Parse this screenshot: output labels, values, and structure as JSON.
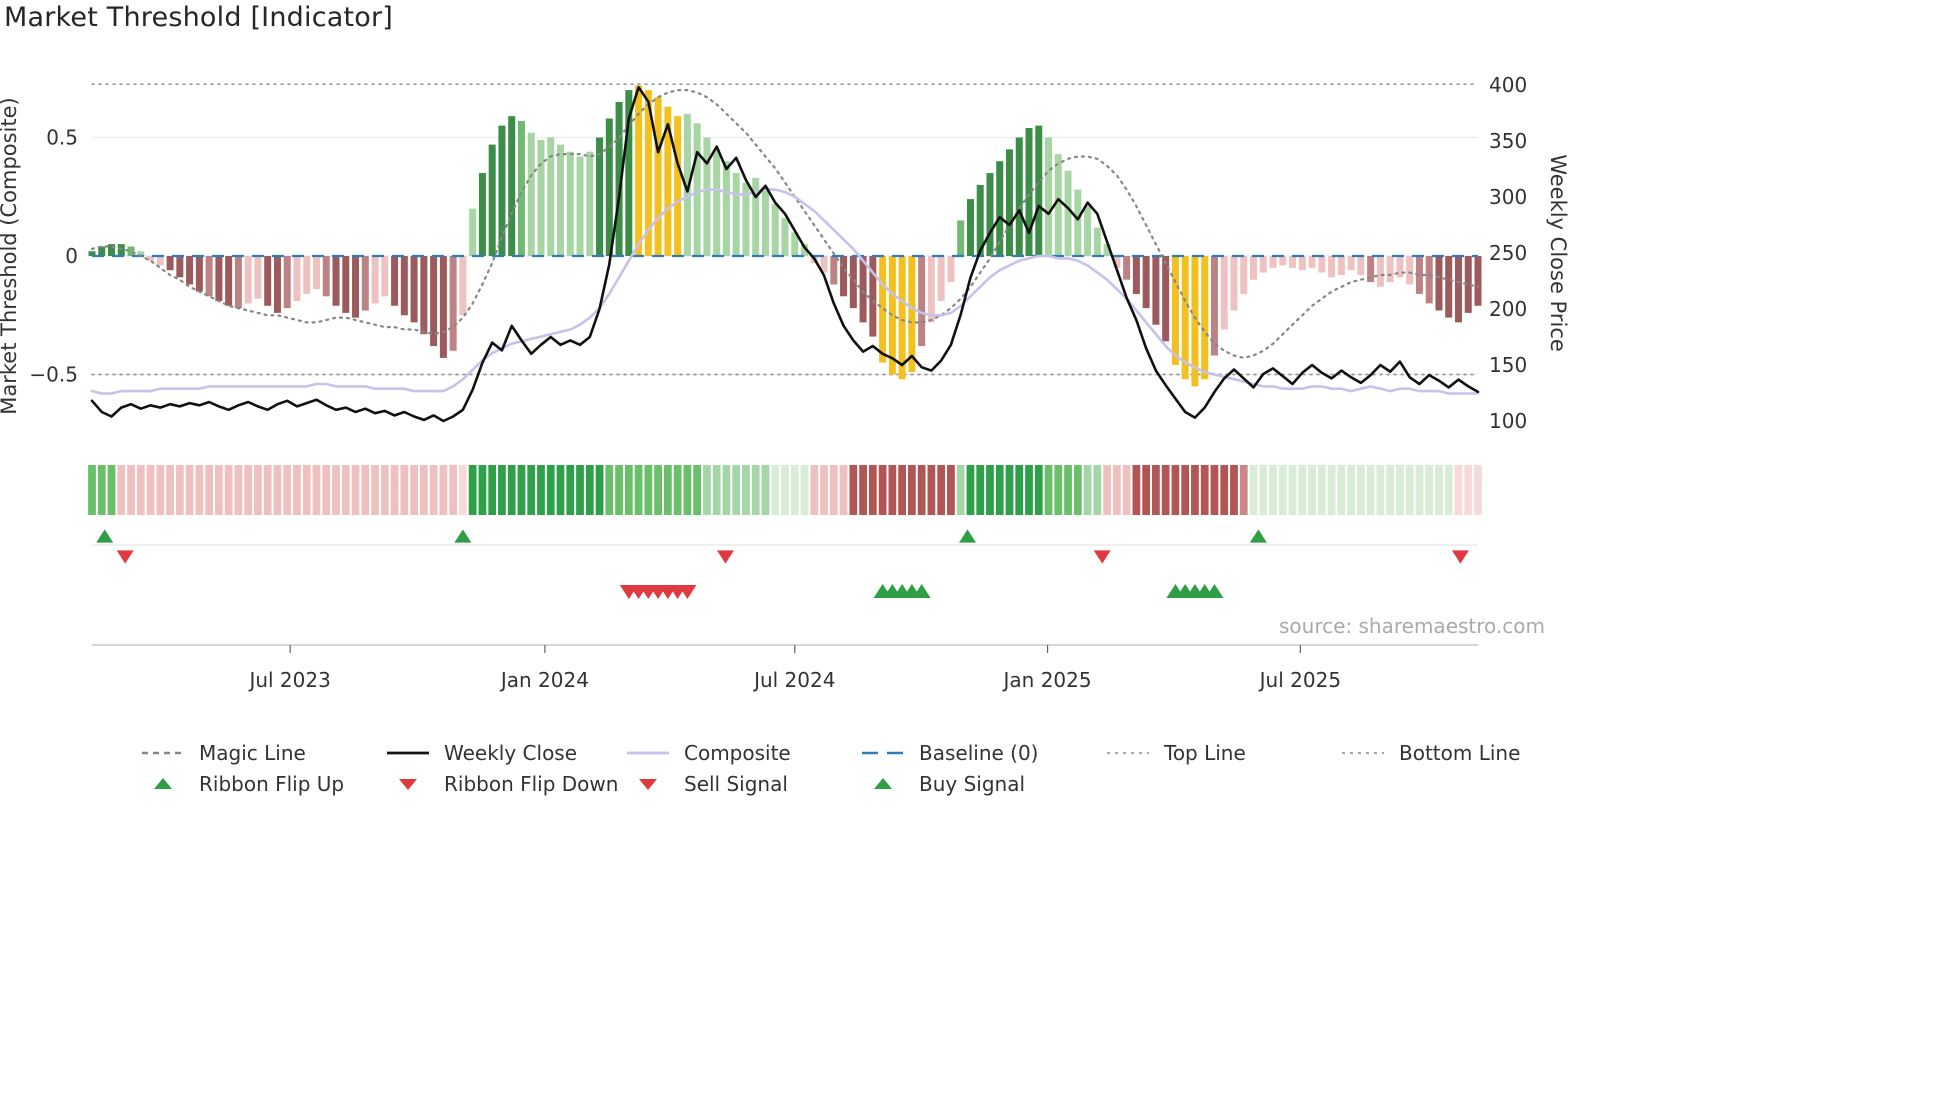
{
  "page": {
    "title": "Market Threshold [Indicator]",
    "source": "source: sharemaestro.com"
  },
  "legend": {
    "items": [
      {
        "label": "Magic Line"
      },
      {
        "label": "Weekly Close"
      },
      {
        "label": "Composite"
      },
      {
        "label": "Baseline (0)"
      },
      {
        "label": "Top Line"
      },
      {
        "label": "Bottom Line"
      },
      {
        "label": "Ribbon Flip Up"
      },
      {
        "label": "Ribbon Flip Down"
      },
      {
        "label": "Sell Signal"
      },
      {
        "label": "Buy Signal"
      }
    ]
  },
  "chart_data": {
    "type": "combo",
    "title": "Market Threshold [Indicator]",
    "x_axis": {
      "unit": "week",
      "count": 143,
      "tick_weeks": [
        20.3,
        46.4,
        72.0,
        97.9,
        123.8
      ],
      "tick_labels": [
        "Jul 2023",
        "Jan 2024",
        "Jul 2024",
        "Jan 2025",
        "Jul 2025"
      ]
    },
    "left_axis": {
      "label": "Market Threshold (Composite)",
      "ticks": [
        {
          "v": 0.5,
          "label": "0.5"
        },
        {
          "v": 0,
          "label": "0"
        },
        {
          "v": -0.5,
          "label": "−0.5"
        }
      ],
      "range": [
        -0.8,
        0.85
      ]
    },
    "right_axis": {
      "label": "Weekly Close Price",
      "ticks": [
        400,
        350,
        300,
        250,
        200,
        150,
        100
      ],
      "range": [
        75,
        425
      ]
    },
    "reference_lines": {
      "top_line": 0.725,
      "bottom_line": -0.5,
      "baseline": 0
    },
    "bars": {
      "name": "Market Threshold histogram",
      "values": [
        0.02,
        0.04,
        0.05,
        0.05,
        0.04,
        0.02,
        -0.02,
        -0.04,
        -0.06,
        -0.09,
        -0.12,
        -0.15,
        -0.17,
        -0.19,
        -0.21,
        -0.22,
        -0.2,
        -0.18,
        -0.21,
        -0.24,
        -0.22,
        -0.19,
        -0.16,
        -0.14,
        -0.17,
        -0.21,
        -0.24,
        -0.26,
        -0.23,
        -0.2,
        -0.17,
        -0.21,
        -0.25,
        -0.28,
        -0.33,
        -0.38,
        -0.43,
        -0.4,
        -0.25,
        0.2,
        0.35,
        0.47,
        0.55,
        0.59,
        0.57,
        0.52,
        0.49,
        0.5,
        0.47,
        0.44,
        0.42,
        0.44,
        0.5,
        0.58,
        0.65,
        0.7,
        0.72,
        0.7,
        0.67,
        0.63,
        0.59,
        0.6,
        0.56,
        0.5,
        0.45,
        0.4,
        0.35,
        0.31,
        0.33,
        0.28,
        0.22,
        0.16,
        0.1,
        0.05,
        -0.03,
        -0.07,
        -0.12,
        -0.17,
        -0.22,
        -0.28,
        -0.34,
        -0.45,
        -0.5,
        -0.52,
        -0.49,
        -0.38,
        -0.28,
        -0.19,
        -0.11,
        0.15,
        0.24,
        0.3,
        0.35,
        0.4,
        0.45,
        0.5,
        0.54,
        0.55,
        0.5,
        0.43,
        0.36,
        0.28,
        0.21,
        0.12,
        0.05,
        -0.05,
        -0.1,
        -0.16,
        -0.22,
        -0.29,
        -0.36,
        -0.46,
        -0.52,
        -0.55,
        -0.52,
        -0.42,
        -0.31,
        -0.23,
        -0.16,
        -0.1,
        -0.07,
        -0.05,
        -0.04,
        -0.05,
        -0.06,
        -0.05,
        -0.07,
        -0.09,
        -0.08,
        -0.06,
        -0.08,
        -0.11,
        -0.13,
        -0.11,
        -0.09,
        -0.12,
        -0.16,
        -0.2,
        -0.23,
        -0.26,
        -0.28,
        -0.24,
        -0.21
      ],
      "colors": [
        "dg",
        "dg",
        "dg",
        "dg",
        "mg",
        "lg",
        "lr",
        "lr",
        "dr",
        "dr",
        "dr",
        "dr",
        "mr",
        "dr",
        "dr",
        "mr",
        "lr",
        "lr",
        "dr",
        "dr",
        "mr",
        "lr",
        "lr",
        "lr",
        "mr",
        "dr",
        "dr",
        "dr",
        "mr",
        "lr",
        "lr",
        "dr",
        "dr",
        "dr",
        "dr",
        "dr",
        "dr",
        "mr",
        "lr",
        "lg",
        "dg",
        "dg",
        "dg",
        "dg",
        "mg",
        "lg",
        "lg",
        "lg",
        "lg",
        "lg",
        "lg",
        "lg",
        "dg",
        "dg",
        "dg",
        "dg",
        "y",
        "y",
        "y",
        "y",
        "y",
        "lg",
        "lg",
        "lg",
        "lg",
        "lg",
        "lg",
        "lg",
        "lg",
        "lg",
        "lg",
        "lg",
        "lg",
        "lg",
        "lr",
        "lr",
        "mr",
        "dr",
        "dr",
        "dr",
        "dr",
        "y",
        "y",
        "y",
        "y",
        "mr",
        "lr",
        "lr",
        "lr",
        "mg",
        "dg",
        "dg",
        "dg",
        "dg",
        "dg",
        "dg",
        "dg",
        "dg",
        "lg",
        "lg",
        "lg",
        "lg",
        "lg",
        "lg",
        "lg",
        "lr",
        "mr",
        "dr",
        "dr",
        "dr",
        "dr",
        "y",
        "y",
        "y",
        "y",
        "mr",
        "lr",
        "lr",
        "lr",
        "lr",
        "lr",
        "lr",
        "lr",
        "lr",
        "lr",
        "lr",
        "lr",
        "lr",
        "lr",
        "lr",
        "lr",
        "mr",
        "lr",
        "lr",
        "lr",
        "lr",
        "mr",
        "mr",
        "dr",
        "dr",
        "dr",
        "dr",
        "dr"
      ]
    },
    "series": [
      {
        "name": "Magic Line",
        "axis": "left",
        "style": "dotted",
        "values": [
          0.03,
          0.04,
          0.04,
          0.03,
          0.02,
          0.0,
          -0.02,
          -0.05,
          -0.08,
          -0.1,
          -0.13,
          -0.15,
          -0.17,
          -0.19,
          -0.21,
          -0.22,
          -0.23,
          -0.24,
          -0.25,
          -0.25,
          -0.26,
          -0.27,
          -0.28,
          -0.28,
          -0.27,
          -0.26,
          -0.26,
          -0.27,
          -0.28,
          -0.29,
          -0.3,
          -0.3,
          -0.31,
          -0.31,
          -0.32,
          -0.33,
          -0.32,
          -0.3,
          -0.26,
          -0.2,
          -0.12,
          -0.03,
          0.08,
          0.18,
          0.27,
          0.34,
          0.39,
          0.42,
          0.43,
          0.43,
          0.43,
          0.42,
          0.43,
          0.46,
          0.5,
          0.55,
          0.6,
          0.64,
          0.67,
          0.69,
          0.7,
          0.7,
          0.69,
          0.67,
          0.64,
          0.6,
          0.56,
          0.52,
          0.47,
          0.42,
          0.37,
          0.31,
          0.25,
          0.19,
          0.13,
          0.07,
          0.01,
          -0.05,
          -0.1,
          -0.15,
          -0.19,
          -0.22,
          -0.25,
          -0.27,
          -0.28,
          -0.28,
          -0.27,
          -0.25,
          -0.22,
          -0.18,
          -0.13,
          -0.07,
          -0.01,
          0.06,
          0.13,
          0.2,
          0.26,
          0.31,
          0.36,
          0.39,
          0.41,
          0.42,
          0.42,
          0.41,
          0.38,
          0.34,
          0.28,
          0.21,
          0.13,
          0.05,
          -0.03,
          -0.11,
          -0.19,
          -0.26,
          -0.32,
          -0.37,
          -0.4,
          -0.42,
          -0.43,
          -0.42,
          -0.4,
          -0.37,
          -0.33,
          -0.29,
          -0.25,
          -0.21,
          -0.18,
          -0.15,
          -0.13,
          -0.11,
          -0.1,
          -0.09,
          -0.08,
          -0.08,
          -0.07,
          -0.07,
          -0.08,
          -0.08,
          -0.09,
          -0.1,
          -0.11,
          -0.12,
          -0.13
        ]
      },
      {
        "name": "Weekly Close",
        "axis": "right",
        "style": "solid",
        "values": [
          118,
          108,
          104,
          112,
          115,
          111,
          114,
          112,
          115,
          113,
          116,
          114,
          117,
          113,
          110,
          114,
          117,
          113,
          110,
          115,
          118,
          113,
          116,
          119,
          114,
          110,
          112,
          108,
          111,
          107,
          109,
          105,
          108,
          104,
          101,
          105,
          100,
          104,
          110,
          128,
          152,
          170,
          163,
          185,
          172,
          160,
          168,
          175,
          168,
          172,
          168,
          175,
          200,
          240,
          300,
          370,
          398,
          385,
          340,
          365,
          330,
          305,
          340,
          330,
          345,
          325,
          335,
          315,
          300,
          310,
          295,
          285,
          270,
          255,
          245,
          230,
          205,
          185,
          172,
          162,
          167,
          160,
          156,
          150,
          158,
          148,
          145,
          154,
          168,
          195,
          228,
          252,
          268,
          282,
          275,
          288,
          268,
          292,
          285,
          298,
          290,
          280,
          295,
          285,
          260,
          235,
          210,
          190,
          165,
          145,
          132,
          120,
          108,
          103,
          112,
          126,
          138,
          146,
          138,
          130,
          142,
          147,
          140,
          133,
          143,
          150,
          143,
          138,
          145,
          139,
          134,
          141,
          150,
          144,
          153,
          139,
          133,
          141,
          136,
          130,
          137,
          131,
          126
        ]
      },
      {
        "name": "Composite",
        "axis": "left",
        "style": "solid",
        "values": [
          -0.57,
          -0.58,
          -0.58,
          -0.57,
          -0.57,
          -0.57,
          -0.57,
          -0.56,
          -0.56,
          -0.56,
          -0.56,
          -0.56,
          -0.55,
          -0.55,
          -0.55,
          -0.55,
          -0.55,
          -0.55,
          -0.55,
          -0.55,
          -0.55,
          -0.55,
          -0.55,
          -0.54,
          -0.54,
          -0.55,
          -0.55,
          -0.55,
          -0.55,
          -0.56,
          -0.56,
          -0.56,
          -0.56,
          -0.57,
          -0.57,
          -0.57,
          -0.57,
          -0.55,
          -0.52,
          -0.48,
          -0.44,
          -0.41,
          -0.39,
          -0.37,
          -0.36,
          -0.35,
          -0.34,
          -0.33,
          -0.32,
          -0.31,
          -0.29,
          -0.26,
          -0.22,
          -0.16,
          -0.09,
          -0.02,
          0.05,
          0.11,
          0.16,
          0.2,
          0.23,
          0.25,
          0.27,
          0.28,
          0.28,
          0.27,
          0.26,
          0.26,
          0.27,
          0.28,
          0.28,
          0.27,
          0.25,
          0.22,
          0.19,
          0.15,
          0.11,
          0.07,
          0.03,
          -0.02,
          -0.07,
          -0.12,
          -0.16,
          -0.19,
          -0.22,
          -0.24,
          -0.25,
          -0.25,
          -0.24,
          -0.21,
          -0.17,
          -0.13,
          -0.09,
          -0.06,
          -0.04,
          -0.02,
          -0.01,
          0.0,
          0.0,
          -0.01,
          -0.01,
          -0.02,
          -0.04,
          -0.07,
          -0.1,
          -0.14,
          -0.18,
          -0.23,
          -0.28,
          -0.33,
          -0.38,
          -0.42,
          -0.45,
          -0.47,
          -0.49,
          -0.5,
          -0.51,
          -0.52,
          -0.53,
          -0.54,
          -0.55,
          -0.55,
          -0.56,
          -0.56,
          -0.56,
          -0.55,
          -0.55,
          -0.56,
          -0.56,
          -0.57,
          -0.56,
          -0.55,
          -0.56,
          -0.57,
          -0.56,
          -0.56,
          -0.57,
          -0.57,
          -0.57,
          -0.58,
          -0.58,
          -0.58,
          -0.58
        ]
      }
    ],
    "ribbon": [
      [
        "G2",
        3
      ],
      [
        "R1",
        35
      ],
      [
        "R0",
        1
      ],
      [
        "G3",
        14
      ],
      [
        "G2",
        10
      ],
      [
        "G1",
        7
      ],
      [
        "G0",
        4
      ],
      [
        "R1",
        4
      ],
      [
        "R3",
        11
      ],
      [
        "G1",
        1
      ],
      [
        "G3",
        8
      ],
      [
        "G2",
        4
      ],
      [
        "G1",
        2
      ],
      [
        "R1",
        3
      ],
      [
        "R3",
        11
      ],
      [
        "R2",
        1
      ],
      [
        "G0",
        21
      ],
      [
        "R0",
        3
      ]
    ],
    "signals": {
      "ribbon_flip_up_weeks": [
        1.3,
        38,
        89.7,
        119.5
      ],
      "ribbon_flip_down_weeks": [
        3.4,
        64.9,
        103.5,
        140.2
      ],
      "sell_signal_weeks": [
        55,
        56,
        57,
        58,
        59,
        60,
        61
      ],
      "buy_signal_weeks": [
        81,
        82,
        83,
        84,
        85,
        111,
        112,
        113,
        114,
        115
      ]
    },
    "palette": {
      "bar": {
        "dg": "#3c8d47",
        "mg": "#74b875",
        "lg": "#a8d5a4",
        "y": "#f3c11f",
        "dr": "#9d5a5c",
        "mr": "#bd8384",
        "lr": "#eec2c0"
      },
      "ribbon": {
        "G3": "#2fa04a",
        "G2": "#6abf69",
        "G1": "#a5d6a7",
        "G0": "#d8ecd6",
        "R3": "#b25555",
        "R2": "#cc8686",
        "R1": "#eec0c0",
        "R0": "#f6dada"
      },
      "lines": {
        "magic": "#878787",
        "weekly_close": "#111111",
        "composite": "#c7c2ec",
        "baseline": "#2e7cb8",
        "top_bottom": "#999999"
      },
      "signals": {
        "up": "#2f9e44",
        "down": "#e0393f"
      }
    },
    "layout_hints": {
      "grid": "faint horizontal at 0.5/0/-0.5",
      "legend_position": "bottom, two rows"
    }
  }
}
